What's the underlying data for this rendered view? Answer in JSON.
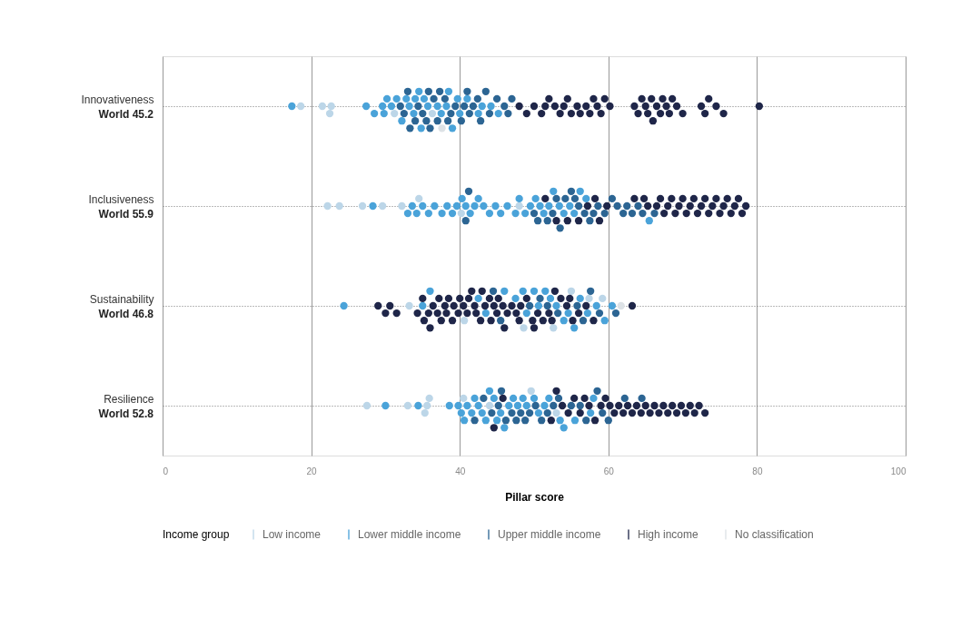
{
  "chart_data": {
    "type": "scatter",
    "orientation": "horizontal",
    "xlabel": "Pillar score",
    "legend_title": "Income group",
    "legend": "bottom",
    "grid": true,
    "marker": "circle",
    "categories": [
      "Innovativeness",
      "Inclusiveness",
      "Sustainability",
      "Resilience"
    ],
    "annotations": [
      "World 45.2",
      "World 55.9",
      "World 46.8",
      "World 52.8"
    ],
    "xlim": [
      0,
      100
    ],
    "xticks": [
      0,
      20,
      40,
      60,
      80,
      100
    ],
    "series": [
      {
        "name": "Low income",
        "color": "#bcd6e8",
        "x": [
          "Innovativeness",
          "Innovativeness",
          "Innovativeness",
          "Innovativeness",
          "Innovativeness",
          "Innovativeness",
          "Inclusiveness",
          "Inclusiveness",
          "Inclusiveness",
          "Inclusiveness",
          "Inclusiveness",
          "Inclusiveness",
          "Inclusiveness",
          "Inclusiveness",
          "Sustainability",
          "Sustainability",
          "Sustainability",
          "Sustainability",
          "Sustainability",
          "Sustainability",
          "Sustainability",
          "Resilience",
          "Resilience",
          "Resilience",
          "Resilience",
          "Resilience",
          "Resilience",
          "Resilience",
          "Resilience",
          "Resilience"
        ],
        "values": [
          18.6,
          21.5,
          22.5,
          22.7,
          31.2,
          36.3,
          22.2,
          23.8,
          26.9,
          29.6,
          32.2,
          34.5,
          40.2,
          48,
          33.2,
          40.6,
          48.6,
          52.6,
          55,
          57.4,
          59.2,
          27.5,
          33,
          35.3,
          35.6,
          35.9,
          40.5,
          44,
          49.6,
          53
        ]
      },
      {
        "name": "Lower middle income",
        "color": "#4aa3d9",
        "x": [
          "Innovativeness",
          "Innovativeness",
          "Innovativeness",
          "Innovativeness",
          "Innovativeness",
          "Innovativeness",
          "Innovativeness",
          "Innovativeness",
          "Innovativeness",
          "Innovativeness",
          "Innovativeness",
          "Innovativeness",
          "Innovativeness",
          "Innovativeness",
          "Innovativeness",
          "Innovativeness",
          "Innovativeness",
          "Innovativeness",
          "Innovativeness",
          "Innovativeness",
          "Innovativeness",
          "Innovativeness",
          "Innovativeness",
          "Innovativeness",
          "Innovativeness",
          "Innovativeness",
          "Innovativeness",
          "Innovativeness",
          "Innovativeness",
          "Inclusiveness",
          "Inclusiveness",
          "Inclusiveness",
          "Inclusiveness",
          "Inclusiveness",
          "Inclusiveness",
          "Inclusiveness",
          "Inclusiveness",
          "Inclusiveness",
          "Inclusiveness",
          "Inclusiveness",
          "Inclusiveness",
          "Inclusiveness",
          "Inclusiveness",
          "Inclusiveness",
          "Inclusiveness",
          "Inclusiveness",
          "Inclusiveness",
          "Inclusiveness",
          "Inclusiveness",
          "Inclusiveness",
          "Inclusiveness",
          "Inclusiveness",
          "Inclusiveness",
          "Inclusiveness",
          "Inclusiveness",
          "Inclusiveness",
          "Inclusiveness",
          "Inclusiveness",
          "Inclusiveness",
          "Inclusiveness",
          "Inclusiveness",
          "Inclusiveness",
          "Inclusiveness",
          "Inclusiveness",
          "Inclusiveness",
          "Inclusiveness",
          "Sustainability",
          "Sustainability",
          "Sustainability",
          "Sustainability",
          "Sustainability",
          "Sustainability",
          "Sustainability",
          "Sustainability",
          "Sustainability",
          "Sustainability",
          "Sustainability",
          "Sustainability",
          "Sustainability",
          "Sustainability",
          "Sustainability",
          "Sustainability",
          "Sustainability",
          "Sustainability",
          "Sustainability",
          "Sustainability",
          "Sustainability",
          "Sustainability",
          "Resilience",
          "Resilience",
          "Resilience",
          "Resilience",
          "Resilience",
          "Resilience",
          "Resilience",
          "Resilience",
          "Resilience",
          "Resilience",
          "Resilience",
          "Resilience",
          "Resilience",
          "Resilience",
          "Resilience",
          "Resilience",
          "Resilience",
          "Resilience",
          "Resilience",
          "Resilience",
          "Resilience",
          "Resilience",
          "Resilience",
          "Resilience",
          "Resilience",
          "Resilience",
          "Resilience",
          "Resilience",
          "Resilience",
          "Resilience",
          "Resilience"
        ],
        "values": [
          17.4,
          27.4,
          28.5,
          29.6,
          29.8,
          30.2,
          30.8,
          31.5,
          32.2,
          32.8,
          33.2,
          33.8,
          34,
          34.5,
          34.8,
          35.2,
          35.7,
          37,
          37.5,
          38.2,
          38.5,
          39,
          39.7,
          40,
          41,
          42.5,
          43,
          44.2,
          45.2,
          28.3,
          33,
          33.6,
          34.2,
          35,
          35.8,
          36.6,
          37.6,
          38.3,
          39,
          39.6,
          40.3,
          40.8,
          41.4,
          42,
          42.5,
          43.2,
          44,
          44.8,
          45.5,
          46.4,
          47.5,
          48,
          48.8,
          49.5,
          50.2,
          50.8,
          51.3,
          52,
          52.6,
          53.4,
          54,
          54.8,
          55.4,
          56.2,
          57,
          65.5,
          24.4,
          35,
          36,
          42.5,
          43.5,
          46,
          47.5,
          48.5,
          49,
          50,
          50.6,
          51.5,
          52.2,
          53,
          54,
          54.6,
          55.4,
          56.2,
          57.2,
          58.4,
          59.5,
          60.5,
          30,
          34.4,
          38.6,
          39.8,
          40.2,
          40.6,
          41,
          41.6,
          42,
          42.5,
          43,
          43.5,
          44,
          44.6,
          45,
          45.5,
          46,
          46.6,
          47.2,
          47.8,
          48.5,
          49,
          50,
          50.6,
          51.4,
          52,
          53.5,
          54,
          55.5,
          57.6,
          58
        ]
      },
      {
        "name": "Upper middle income",
        "color": "#2c6593",
        "x": [
          "Innovativeness",
          "Innovativeness",
          "Innovativeness",
          "Innovativeness",
          "Innovativeness",
          "Innovativeness",
          "Innovativeness",
          "Innovativeness",
          "Innovativeness",
          "Innovativeness",
          "Innovativeness",
          "Innovativeness",
          "Innovativeness",
          "Innovativeness",
          "Innovativeness",
          "Innovativeness",
          "Innovativeness",
          "Innovativeness",
          "Innovativeness",
          "Innovativeness",
          "Innovativeness",
          "Innovativeness",
          "Innovativeness",
          "Innovativeness",
          "Innovativeness",
          "Innovativeness",
          "Innovativeness",
          "Innovativeness",
          "Innovativeness",
          "Innovativeness",
          "Inclusiveness",
          "Inclusiveness",
          "Inclusiveness",
          "Inclusiveness",
          "Inclusiveness",
          "Inclusiveness",
          "Inclusiveness",
          "Inclusiveness",
          "Inclusiveness",
          "Inclusiveness",
          "Inclusiveness",
          "Inclusiveness",
          "Inclusiveness",
          "Inclusiveness",
          "Inclusiveness",
          "Inclusiveness",
          "Inclusiveness",
          "Inclusiveness",
          "Inclusiveness",
          "Inclusiveness",
          "Inclusiveness",
          "Inclusiveness",
          "Inclusiveness",
          "Inclusiveness",
          "Inclusiveness",
          "Sustainability",
          "Sustainability",
          "Sustainability",
          "Sustainability",
          "Sustainability",
          "Sustainability",
          "Sustainability",
          "Sustainability",
          "Sustainability",
          "Sustainability",
          "Sustainability",
          "Resilience",
          "Resilience",
          "Resilience",
          "Resilience",
          "Resilience",
          "Resilience",
          "Resilience",
          "Resilience",
          "Resilience",
          "Resilience",
          "Resilience",
          "Resilience",
          "Resilience",
          "Resilience",
          "Resilience",
          "Resilience",
          "Resilience",
          "Resilience",
          "Resilience",
          "Resilience",
          "Resilience",
          "Resilience",
          "Resilience",
          "Resilience"
        ],
        "values": [
          32,
          32.5,
          33,
          33.3,
          34,
          34.4,
          35,
          35.5,
          35.8,
          36,
          36.5,
          37,
          37.3,
          38,
          38.4,
          38.8,
          39.4,
          40.2,
          40.6,
          41,
          41.3,
          41.8,
          42.4,
          42.8,
          43.5,
          44,
          45,
          46,
          46.5,
          47,
          40.8,
          41.2,
          50,
          50.5,
          51.8,
          52.5,
          53,
          53.5,
          54.2,
          55,
          55.5,
          56,
          56.8,
          57.5,
          58,
          58.6,
          59.5,
          60.5,
          61.2,
          62,
          62.5,
          63.2,
          64,
          64.6,
          66.2,
          44.5,
          45.5,
          49.4,
          50.8,
          51.8,
          53.2,
          55.8,
          56.6,
          57.6,
          58.8,
          61,
          42,
          43.2,
          44.3,
          45.2,
          45.6,
          46.2,
          47,
          47.6,
          48.2,
          48.8,
          49.4,
          50.2,
          51,
          51.8,
          52.6,
          53.3,
          55,
          56.2,
          57,
          58.5,
          59.2,
          60,
          62.2,
          64.5
        ]
      },
      {
        "name": "High income",
        "color": "#1f2649",
        "x": [
          "Innovativeness",
          "Innovativeness",
          "Innovativeness",
          "Innovativeness",
          "Innovativeness",
          "Innovativeness",
          "Innovativeness",
          "Innovativeness",
          "Innovativeness",
          "Innovativeness",
          "Innovativeness",
          "Innovativeness",
          "Innovativeness",
          "Innovativeness",
          "Innovativeness",
          "Innovativeness",
          "Innovativeness",
          "Innovativeness",
          "Innovativeness",
          "Innovativeness",
          "Innovativeness",
          "Innovativeness",
          "Innovativeness",
          "Innovativeness",
          "Innovativeness",
          "Innovativeness",
          "Innovativeness",
          "Innovativeness",
          "Innovativeness",
          "Innovativeness",
          "Innovativeness",
          "Innovativeness",
          "Innovativeness",
          "Innovativeness",
          "Innovativeness",
          "Innovativeness",
          "Innovativeness",
          "Innovativeness",
          "Innovativeness",
          "Innovativeness",
          "Innovativeness",
          "Inclusiveness",
          "Inclusiveness",
          "Inclusiveness",
          "Inclusiveness",
          "Inclusiveness",
          "Inclusiveness",
          "Inclusiveness",
          "Inclusiveness",
          "Inclusiveness",
          "Inclusiveness",
          "Inclusiveness",
          "Inclusiveness",
          "Inclusiveness",
          "Inclusiveness",
          "Inclusiveness",
          "Inclusiveness",
          "Inclusiveness",
          "Inclusiveness",
          "Inclusiveness",
          "Inclusiveness",
          "Inclusiveness",
          "Inclusiveness",
          "Inclusiveness",
          "Inclusiveness",
          "Inclusiveness",
          "Inclusiveness",
          "Inclusiveness",
          "Inclusiveness",
          "Inclusiveness",
          "Inclusiveness",
          "Inclusiveness",
          "Inclusiveness",
          "Inclusiveness",
          "Inclusiveness",
          "Inclusiveness",
          "Inclusiveness",
          "Sustainability",
          "Sustainability",
          "Sustainability",
          "Sustainability",
          "Sustainability",
          "Sustainability",
          "Sustainability",
          "Sustainability",
          "Sustainability",
          "Sustainability",
          "Sustainability",
          "Sustainability",
          "Sustainability",
          "Sustainability",
          "Sustainability",
          "Sustainability",
          "Sustainability",
          "Sustainability",
          "Sustainability",
          "Sustainability",
          "Sustainability",
          "Sustainability",
          "Sustainability",
          "Sustainability",
          "Sustainability",
          "Sustainability",
          "Sustainability",
          "Sustainability",
          "Sustainability",
          "Sustainability",
          "Sustainability",
          "Sustainability",
          "Sustainability",
          "Sustainability",
          "Sustainability",
          "Sustainability",
          "Sustainability",
          "Sustainability",
          "Sustainability",
          "Sustainability",
          "Sustainability",
          "Sustainability",
          "Sustainability",
          "Sustainability",
          "Sustainability",
          "Sustainability",
          "Sustainability",
          "Sustainability",
          "Sustainability",
          "Sustainability",
          "Sustainability",
          "Sustainability",
          "Sustainability",
          "Sustainability",
          "Sustainability",
          "Sustainability",
          "Sustainability",
          "Resilience",
          "Resilience",
          "Resilience",
          "Resilience",
          "Resilience",
          "Resilience",
          "Resilience",
          "Resilience",
          "Resilience",
          "Resilience",
          "Resilience",
          "Resilience",
          "Resilience",
          "Resilience",
          "Resilience",
          "Resilience",
          "Resilience",
          "Resilience",
          "Resilience",
          "Resilience",
          "Resilience",
          "Resilience",
          "Resilience",
          "Resilience",
          "Resilience",
          "Resilience",
          "Resilience",
          "Resilience",
          "Resilience",
          "Resilience",
          "Resilience",
          "Resilience",
          "Resilience",
          "Resilience",
          "Resilience"
        ],
        "values": [
          48,
          49,
          50,
          51,
          51.5,
          52,
          52.8,
          53.5,
          54,
          54.5,
          55,
          55.8,
          56.2,
          57,
          57.5,
          58,
          58.5,
          59,
          59.5,
          60.2,
          63.5,
          64,
          64.5,
          65,
          65.3,
          65.8,
          66,
          66.5,
          67,
          67.3,
          67.8,
          68.2,
          68.6,
          69.2,
          70,
          72.5,
          73,
          73.5,
          74.5,
          75.5,
          80.3,
          51.5,
          53,
          54.5,
          56,
          57.2,
          58.2,
          58.8,
          59.8,
          63.5,
          64.8,
          65.3,
          66.5,
          67,
          67.5,
          68,
          68.5,
          69,
          69.5,
          70,
          70.5,
          71,
          71.5,
          72,
          72.5,
          73,
          73.5,
          74,
          74.5,
          75,
          75.5,
          76,
          76.5,
          77,
          77.5,
          78,
          78.5,
          29,
          30,
          30.6,
          31.5,
          34.3,
          35,
          35.2,
          35.8,
          36,
          36.4,
          37,
          37.2,
          37.5,
          38,
          38.2,
          38.5,
          39,
          39.2,
          39.8,
          40,
          40.5,
          41,
          41.2,
          41.6,
          42,
          42.2,
          42.8,
          43,
          43.4,
          44,
          44.2,
          44.6,
          45,
          45.2,
          45.8,
          46,
          46.4,
          47,
          47.6,
          48,
          48.2,
          49,
          49.8,
          50,
          50.5,
          51.2,
          52,
          52.4,
          52.8,
          53.6,
          54.4,
          54.8,
          55.2,
          56,
          57,
          58,
          63.2,
          44.6,
          45.8,
          52.3,
          53,
          53.8,
          54.6,
          55.4,
          56.2,
          56.8,
          57.4,
          58.2,
          59,
          59.6,
          60.2,
          60.8,
          61.4,
          62,
          62.6,
          63.2,
          63.8,
          64.4,
          65,
          65.6,
          66.2,
          66.8,
          67.4,
          68,
          68.6,
          69.2,
          69.8,
          70.4,
          71,
          71.6,
          72.2,
          73
        ]
      },
      {
        "name": "No classification",
        "color": "#dde2e6",
        "x": [
          "Innovativeness",
          "Sustainability"
        ],
        "values": [
          37.6,
          61.7
        ]
      }
    ]
  }
}
